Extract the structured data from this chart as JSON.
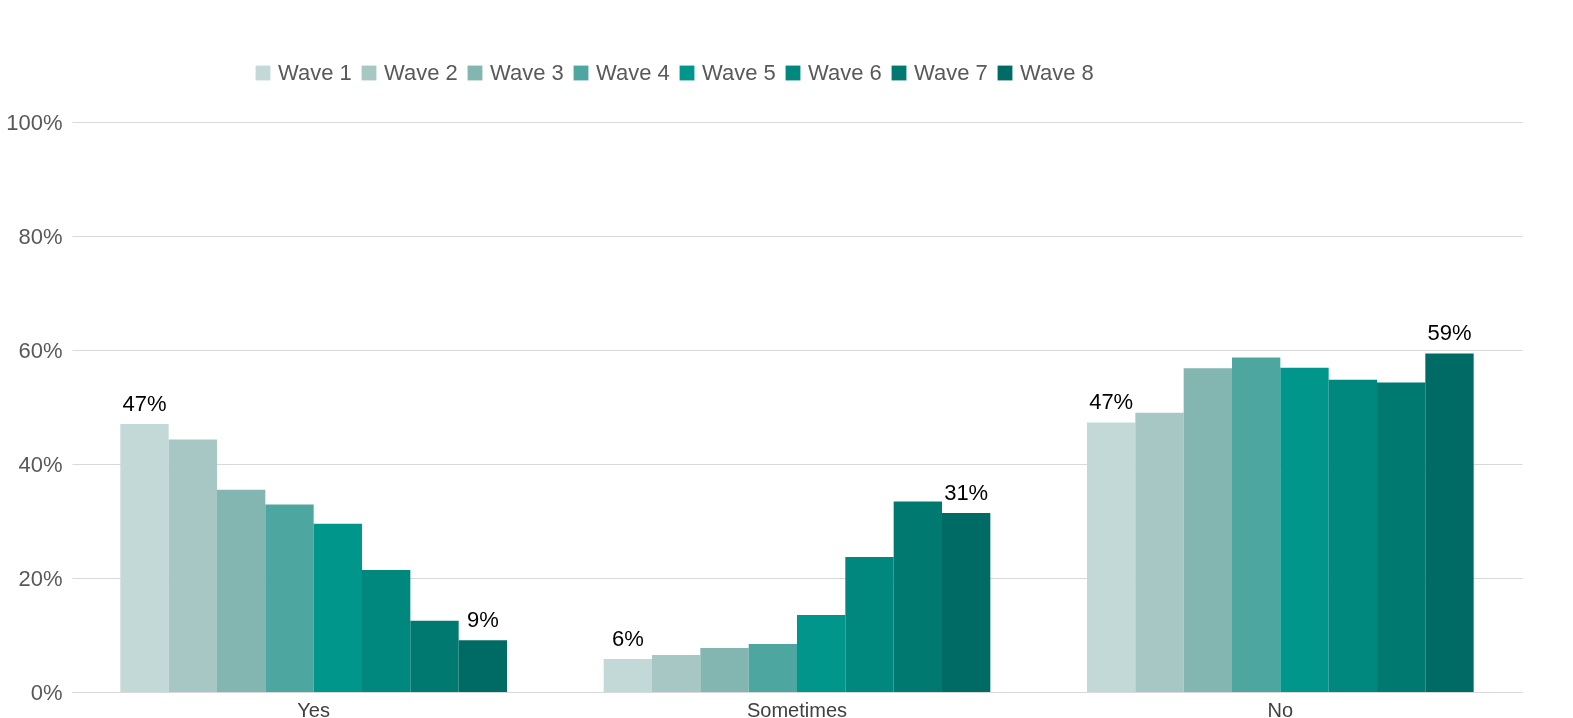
{
  "chart_data": {
    "type": "bar",
    "categories": [
      "Yes",
      "Sometimes",
      "No"
    ],
    "series": [
      {
        "name": "Wave 1",
        "color": "#c3d9d7",
        "values": [
          47,
          5.8,
          47.3
        ],
        "value_labels": [
          "47%",
          "6%",
          "47%"
        ]
      },
      {
        "name": "Wave 2",
        "color": "#a6c7c4",
        "values": [
          44.3,
          6.5,
          49.0
        ]
      },
      {
        "name": "Wave 3",
        "color": "#83b6b1",
        "values": [
          35.5,
          7.7,
          56.8
        ]
      },
      {
        "name": "Wave 4",
        "color": "#4ea6a0",
        "values": [
          32.9,
          8.4,
          58.7
        ]
      },
      {
        "name": "Wave 5",
        "color": "#00968c",
        "values": [
          29.5,
          13.5,
          56.9
        ]
      },
      {
        "name": "Wave 6",
        "color": "#00877e",
        "values": [
          21.4,
          23.7,
          54.8
        ]
      },
      {
        "name": "Wave 7",
        "color": "#007a71",
        "values": [
          12.5,
          33.4,
          54.3
        ]
      },
      {
        "name": "Wave 8",
        "color": "#006a64",
        "values": [
          9.1,
          31.4,
          59.4
        ],
        "value_labels": [
          "9%",
          "31%",
          "59%"
        ]
      }
    ],
    "ylim": [
      0,
      100
    ],
    "yticks": [
      {
        "value": 0,
        "label": "0%"
      },
      {
        "value": 20,
        "label": "20%"
      },
      {
        "value": 40,
        "label": "40%"
      },
      {
        "value": 60,
        "label": "60%"
      },
      {
        "value": 80,
        "label": "80%"
      },
      {
        "value": 100,
        "label": "100%"
      }
    ],
    "grid": "y",
    "legend": "top"
  }
}
